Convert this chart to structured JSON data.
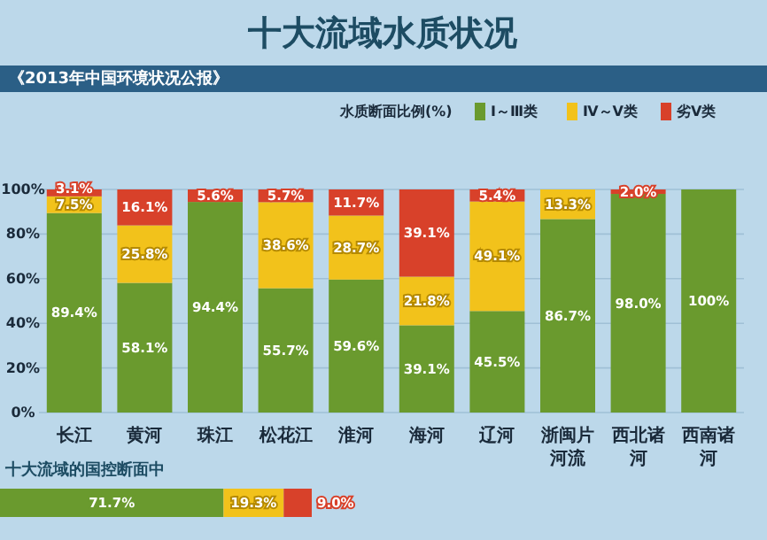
{
  "chart_data": [
    {
      "type": "bar",
      "stacked": true,
      "title": "十大流域水质状况",
      "subtitle": "《2013年中国环境状况公报》",
      "legend_title": "水质断面比例(%)",
      "legend": "top right",
      "grid": "y",
      "ylim": [
        0,
        100
      ],
      "yticks": [
        {
          "value": 0,
          "label": "0%"
        },
        {
          "value": 20,
          "label": "20%"
        },
        {
          "value": 40,
          "label": "40%"
        },
        {
          "value": 60,
          "label": "60%"
        },
        {
          "value": 80,
          "label": "80%"
        },
        {
          "value": 100,
          "label": "100%"
        }
      ],
      "categories": [
        "长江",
        "黄河",
        "珠江",
        "松花江",
        "淮河",
        "海河",
        "辽河",
        "浙闽片河流",
        "西北诸河",
        "西南诸河"
      ],
      "series": [
        {
          "name": "Ⅰ～Ⅲ类",
          "color": "#6a9a2e",
          "values": [
            89.4,
            58.1,
            94.4,
            55.7,
            59.6,
            39.1,
            45.5,
            86.7,
            98.0,
            100
          ],
          "value_labels": [
            "89.4%",
            "58.1%",
            "94.4%",
            "55.7%",
            "59.6%",
            "39.1%",
            "45.5%",
            "86.7%",
            "98.0%",
            "100%"
          ]
        },
        {
          "name": "Ⅳ～Ⅴ类",
          "color": "#f2c21b",
          "values": [
            7.5,
            25.8,
            null,
            38.6,
            28.7,
            21.8,
            49.1,
            13.3,
            null,
            null
          ],
          "value_labels": [
            "7.5%",
            "25.8%",
            null,
            "38.6%",
            "28.7%",
            "21.8%",
            "49.1%",
            "13.3%",
            null,
            null
          ]
        },
        {
          "name": "劣Ⅴ类",
          "color": "#d8412a",
          "values": [
            3.1,
            16.1,
            5.6,
            5.7,
            11.7,
            39.1,
            5.4,
            null,
            2.0,
            null
          ],
          "value_labels": [
            "3.1%",
            "16.1%",
            "5.6%",
            "5.7%",
            "11.7%",
            "39.1%",
            "5.4%",
            null,
            "2.0%",
            null
          ]
        }
      ]
    },
    {
      "type": "bar",
      "stacked": true,
      "orientation": "horizontal",
      "title": "十大流域的国控断面中",
      "categories": [
        null
      ],
      "series": [
        {
          "color": "#6a9a2e",
          "values": [
            71.7
          ],
          "value_labels": [
            "71.7%"
          ]
        },
        {
          "color": "#f2c21b",
          "values": [
            19.3
          ],
          "value_labels": [
            "19.3%"
          ]
        },
        {
          "color": "#d8412a",
          "values": [
            9.0
          ],
          "value_labels": [
            "9.0%"
          ]
        }
      ]
    }
  ]
}
